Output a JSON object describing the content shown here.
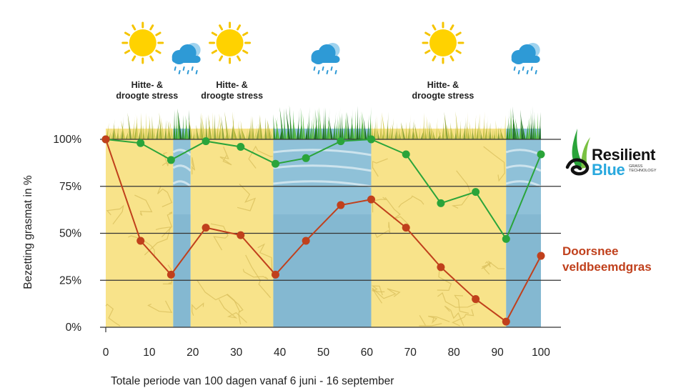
{
  "chart_data": {
    "type": "line",
    "title": "",
    "xlabel": "Totale periode van 100 dagen vanaf 6 juni - 16 september",
    "ylabel": "Bezetting grasmat in %",
    "xlim": [
      0,
      100
    ],
    "ylim": [
      0,
      100
    ],
    "x_ticks": [
      "0",
      "10",
      "20",
      "30",
      "40",
      "50",
      "60",
      "70",
      "80",
      "90",
      "100"
    ],
    "y_ticks": [
      "0%",
      "25%",
      "50%",
      "75%",
      "100%"
    ],
    "grid": "horizontal",
    "series": [
      {
        "name": "Resilient Blue",
        "color": "#2aa43a",
        "points": [
          [
            0,
            100
          ],
          [
            8,
            98
          ],
          [
            15,
            89
          ],
          [
            23,
            99
          ],
          [
            31,
            96
          ],
          [
            39,
            87
          ],
          [
            46,
            90
          ],
          [
            54,
            99
          ],
          [
            61,
            100
          ],
          [
            69,
            92
          ],
          [
            77,
            66
          ],
          [
            85,
            72
          ],
          [
            92,
            47
          ],
          [
            100,
            92
          ]
        ]
      },
      {
        "name": "Doorsnee veldbeemdgras",
        "color": "#c0401c",
        "points": [
          [
            0,
            100
          ],
          [
            8,
            46
          ],
          [
            15,
            28
          ],
          [
            23,
            53
          ],
          [
            31,
            49
          ],
          [
            39,
            28
          ],
          [
            46,
            46
          ],
          [
            54,
            65
          ],
          [
            61,
            68
          ],
          [
            69,
            53
          ],
          [
            77,
            32
          ],
          [
            85,
            15
          ],
          [
            92,
            3
          ],
          [
            100,
            38
          ]
        ]
      }
    ],
    "periods": [
      {
        "type": "dry",
        "from": 0,
        "to": 15.5,
        "label": "Hitte- &\ndroogte stress"
      },
      {
        "type": "wet",
        "from": 15.5,
        "to": 19.5
      },
      {
        "type": "dry",
        "from": 19.5,
        "to": 38.5,
        "label": "Hitte- &\ndroogte stress"
      },
      {
        "type": "wet",
        "from": 38.5,
        "to": 61
      },
      {
        "type": "dry",
        "from": 61,
        "to": 92,
        "label": "Hitte- &\ndroogte stress"
      },
      {
        "type": "wet",
        "from": 92,
        "to": 100
      }
    ],
    "weather_icons": [
      {
        "icon": "sun-icon",
        "x": 8.5
      },
      {
        "icon": "rain-cloud-icon",
        "x": 18.5
      },
      {
        "icon": "sun-icon",
        "x": 28.5
      },
      {
        "icon": "rain-cloud-icon",
        "x": 50.5
      },
      {
        "icon": "sun-icon",
        "x": 77.5
      },
      {
        "icon": "rain-cloud-icon",
        "x": 96.5
      }
    ]
  },
  "legend": {
    "logo_word1": "Resilient",
    "logo_word2": "Blue",
    "logo_sub": "GRASS\nTECHNOLOGY",
    "side_label": "Doorsnee\nveldbeemdgras"
  },
  "colors": {
    "dry": "#f8e38a",
    "crack": "#d9bf5c",
    "wet": "#8fc1d8",
    "grid": "#333333"
  }
}
